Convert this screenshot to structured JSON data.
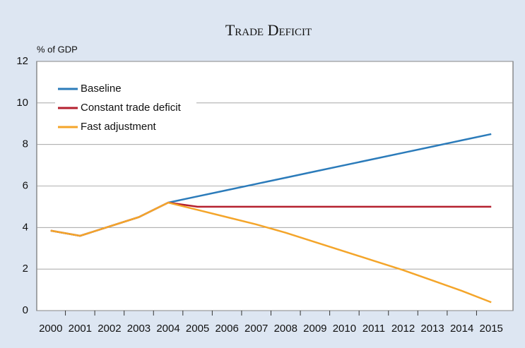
{
  "chart_data": {
    "type": "line",
    "title": "Trade Deficit",
    "y_label": "% of GDP",
    "categories": [
      "2000",
      "2001",
      "2002",
      "2003",
      "2004",
      "2005",
      "2006",
      "2007",
      "2008",
      "2009",
      "2010",
      "2011",
      "2012",
      "2013",
      "2014",
      "2015"
    ],
    "series": [
      {
        "name": "Baseline",
        "color": "#2b7bba",
        "values": [
          3.85,
          3.6,
          4.05,
          4.5,
          5.2,
          5.5,
          5.8,
          6.1,
          6.4,
          6.7,
          7.0,
          7.3,
          7.6,
          7.9,
          8.2,
          8.5
        ]
      },
      {
        "name": "Constant trade deficit",
        "color": "#b5202e",
        "values": [
          3.85,
          3.6,
          4.05,
          4.5,
          5.2,
          5.0,
          5.0,
          5.0,
          5.0,
          5.0,
          5.0,
          5.0,
          5.0,
          5.0,
          5.0,
          5.0
        ]
      },
      {
        "name": "Fast adjustment",
        "color": "#f4a52a",
        "values": [
          3.85,
          3.6,
          4.05,
          4.5,
          5.2,
          4.85,
          4.5,
          4.15,
          3.75,
          3.3,
          2.85,
          2.4,
          1.95,
          1.45,
          0.95,
          0.4
        ]
      }
    ],
    "ylim": [
      0,
      12
    ],
    "yticks": [
      0,
      2,
      4,
      6,
      8,
      10,
      12
    ],
    "grid": true,
    "legend": "top-left"
  }
}
